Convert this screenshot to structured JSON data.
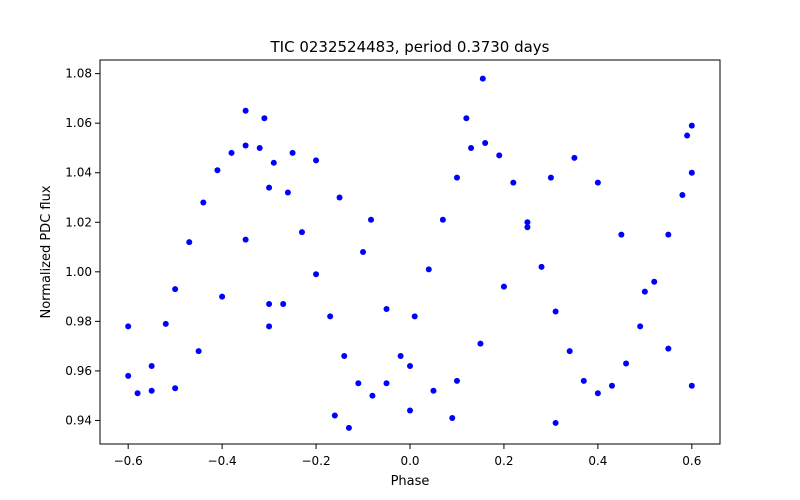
{
  "chart_data": {
    "type": "scatter",
    "title": "TIC 0232524483, period 0.3730 days",
    "xlabel": "Phase",
    "ylabel": "Normalized PDC flux",
    "xlim": [
      -0.66,
      0.66
    ],
    "ylim": [
      0.9305,
      1.0855
    ],
    "xticks": [
      -0.6,
      -0.4,
      -0.2,
      0.0,
      0.2,
      0.4,
      0.6
    ],
    "xtick_labels": [
      "−0.6",
      "−0.4",
      "−0.2",
      "0.0",
      "0.2",
      "0.4",
      "0.6"
    ],
    "yticks": [
      0.94,
      0.96,
      0.98,
      1.0,
      1.02,
      1.04,
      1.06,
      1.08
    ],
    "ytick_labels": [
      "0.94",
      "0.96",
      "0.98",
      "1.00",
      "1.02",
      "1.04",
      "1.06",
      "1.08"
    ],
    "grid": false,
    "series": [
      {
        "color": "#0000ff",
        "marker": "circle",
        "x_range": [
          -0.6,
          0.6
        ],
        "points": [
          [
            -0.6,
            0.958
          ],
          [
            -0.58,
            0.951
          ],
          [
            -0.55,
            0.962
          ],
          [
            -0.52,
            0.979
          ],
          [
            -0.5,
            0.993
          ],
          [
            -0.47,
            1.012
          ],
          [
            -0.44,
            1.028
          ],
          [
            -0.41,
            1.041
          ],
          [
            -0.38,
            1.048
          ],
          [
            -0.35,
            1.051
          ],
          [
            -0.32,
            1.05
          ],
          [
            -0.29,
            1.044
          ],
          [
            -0.26,
            1.032
          ],
          [
            -0.23,
            1.016
          ],
          [
            -0.2,
            0.999
          ],
          [
            -0.17,
            0.982
          ],
          [
            -0.14,
            0.966
          ],
          [
            -0.11,
            0.955
          ],
          [
            -0.08,
            0.95
          ],
          [
            -0.05,
            0.955
          ],
          [
            -0.02,
            0.966
          ],
          [
            0.01,
            0.982
          ],
          [
            0.04,
            1.001
          ],
          [
            0.07,
            1.021
          ],
          [
            0.1,
            1.038
          ],
          [
            0.13,
            1.05
          ],
          [
            0.16,
            1.052
          ],
          [
            0.19,
            1.047
          ],
          [
            0.22,
            1.036
          ],
          [
            0.25,
            1.02
          ],
          [
            0.28,
            1.002
          ],
          [
            0.31,
            0.984
          ],
          [
            0.34,
            0.968
          ],
          [
            0.37,
            0.956
          ],
          [
            0.4,
            0.951
          ],
          [
            0.43,
            0.954
          ],
          [
            0.46,
            0.963
          ],
          [
            0.49,
            0.978
          ],
          [
            0.52,
            0.996
          ],
          [
            0.55,
            1.015
          ],
          [
            0.58,
            1.031
          ],
          [
            0.6,
            1.04
          ],
          [
            -0.6,
            0.978
          ],
          [
            -0.55,
            0.952
          ],
          [
            -0.5,
            0.953
          ],
          [
            -0.45,
            0.968
          ],
          [
            -0.4,
            0.99
          ],
          [
            -0.35,
            1.013
          ],
          [
            -0.3,
            1.034
          ],
          [
            -0.25,
            1.048
          ],
          [
            -0.2,
            1.045
          ],
          [
            -0.15,
            1.03
          ],
          [
            -0.1,
            1.008
          ],
          [
            -0.05,
            0.985
          ],
          [
            0.0,
            0.962
          ],
          [
            0.05,
            0.952
          ],
          [
            0.1,
            0.956
          ],
          [
            0.15,
            0.971
          ],
          [
            0.2,
            0.994
          ],
          [
            0.25,
            1.018
          ],
          [
            0.3,
            1.038
          ],
          [
            0.35,
            1.046
          ],
          [
            0.4,
            1.036
          ],
          [
            0.45,
            1.015
          ],
          [
            0.5,
            0.992
          ],
          [
            0.55,
            0.969
          ],
          [
            0.6,
            0.954
          ],
          [
            -0.13,
            0.937
          ],
          [
            0.31,
            0.939
          ],
          [
            0.155,
            1.078
          ],
          [
            -0.35,
            1.065
          ],
          [
            -0.31,
            1.062
          ],
          [
            0.12,
            1.062
          ],
          [
            -0.083,
            1.021
          ],
          [
            -0.3,
            0.987
          ],
          [
            -0.27,
            0.987
          ],
          [
            -0.3,
            0.978
          ],
          [
            0.09,
            0.941
          ],
          [
            -0.16,
            0.942
          ],
          [
            0.0,
            0.944
          ],
          [
            0.6,
            1.059
          ],
          [
            0.59,
            1.055
          ]
        ]
      }
    ]
  }
}
